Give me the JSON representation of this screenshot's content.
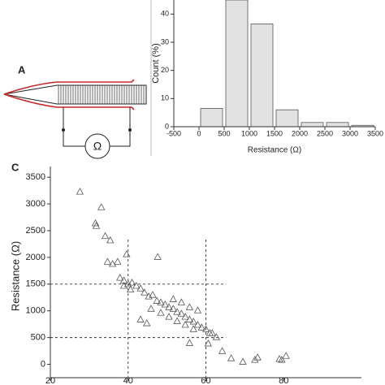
{
  "panel_labels": {
    "a": "A",
    "c": "C"
  },
  "diagram": {
    "symbol": "Ω"
  },
  "chart_data": [
    {
      "type": "histogram",
      "bins": [
        0,
        500,
        1000,
        1500,
        2000,
        2500,
        3000,
        3500
      ],
      "values": [
        6.5,
        45,
        36.5,
        6,
        1.5,
        1.5,
        0.5
      ],
      "color": "#e2e2e2",
      "xlim": [
        -500,
        3500
      ],
      "xticks": [
        -500,
        0,
        500,
        1000,
        1500,
        2000,
        2500,
        3000,
        3500
      ],
      "ylim": [
        0,
        45
      ],
      "yticks": [
        0,
        10,
        20,
        30,
        40
      ],
      "x_label": "Resistance (Ω)",
      "y_label": "Count (%)"
    },
    {
      "type": "scatter",
      "marker": "triangle",
      "color": "#555555",
      "x": [
        27.6,
        33.1,
        31.6,
        31.8,
        34.1,
        35.4,
        34.7,
        36,
        37.3,
        39.6,
        47.6,
        37.9,
        38.9,
        40,
        41,
        42.1,
        43.2,
        38.9,
        40.6,
        44.2,
        45.3,
        46.3,
        47.4,
        48.4,
        49.5,
        50.5,
        51.6,
        52.6,
        53.7,
        54.7,
        55.8,
        56.8,
        57.9,
        58.9,
        60,
        61,
        45.9,
        48.4,
        50.5,
        52.6,
        54.7,
        56.8,
        43.2,
        44.8,
        62.7,
        61.6,
        51.6,
        53.7,
        55.8,
        57.9,
        55.8,
        60.6,
        64.2,
        66.5,
        69.5,
        72.6,
        73.3,
        78.9,
        79.5,
        80.6
      ],
      "values": [
        3230,
        2940,
        2640,
        2590,
        2400,
        2320,
        1920,
        1880,
        1920,
        2060,
        2010,
        1620,
        1570,
        1500,
        1530,
        1470,
        1420,
        1470,
        1400,
        1345,
        1270,
        1300,
        1190,
        1160,
        1120,
        1070,
        1040,
        980,
        950,
        890,
        840,
        800,
        740,
        690,
        660,
        585,
        1040,
        965,
        890,
        810,
        740,
        660,
        840,
        770,
        510,
        585,
        1220,
        1160,
        1070,
        1010,
        400,
        390,
        250,
        115,
        50,
        85,
        130,
        100,
        85,
        160
      ],
      "xlim": [
        20,
        100
      ],
      "xticks": [
        20,
        40,
        60,
        80
      ],
      "ylim": [
        -250,
        3700
      ],
      "yticks": [
        0,
        500,
        1000,
        1500,
        2000,
        2500,
        3000,
        3500
      ],
      "y_label": "Resistance (Ω)",
      "reference_lines": {
        "x": [
          40,
          60
        ],
        "y": [
          500,
          1500
        ]
      }
    }
  ]
}
